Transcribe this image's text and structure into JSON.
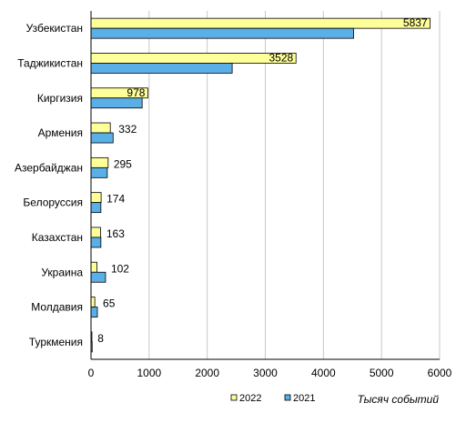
{
  "chart_data": {
    "type": "bar",
    "orientation": "horizontal",
    "categories": [
      "Узбекистан",
      "Таджикистан",
      "Киргизия",
      "Армения",
      "Азербайджан",
      "Белоруссия",
      "Казахстан",
      "Украина",
      "Молдавия",
      "Туркмения"
    ],
    "series": [
      {
        "name": "2022",
        "values": [
          5837,
          3528,
          978,
          332,
          295,
          174,
          163,
          102,
          65,
          8
        ],
        "color": "#ffff99"
      },
      {
        "name": "2021",
        "values": [
          4520,
          2430,
          880,
          380,
          280,
          170,
          170,
          250,
          110,
          20
        ],
        "color": "#5aafe6"
      }
    ],
    "data_labels": [
      "5837",
      "3528",
      "978",
      "332",
      "295",
      "174",
      "163",
      "102",
      "65",
      "8"
    ],
    "xlabel": "Тысяч событий",
    "xlim": [
      0,
      6000
    ],
    "xticks": [
      "0",
      "1000",
      "2000",
      "3000",
      "4000",
      "5000",
      "6000"
    ],
    "grid": "vertical",
    "legend_position": "bottom"
  }
}
